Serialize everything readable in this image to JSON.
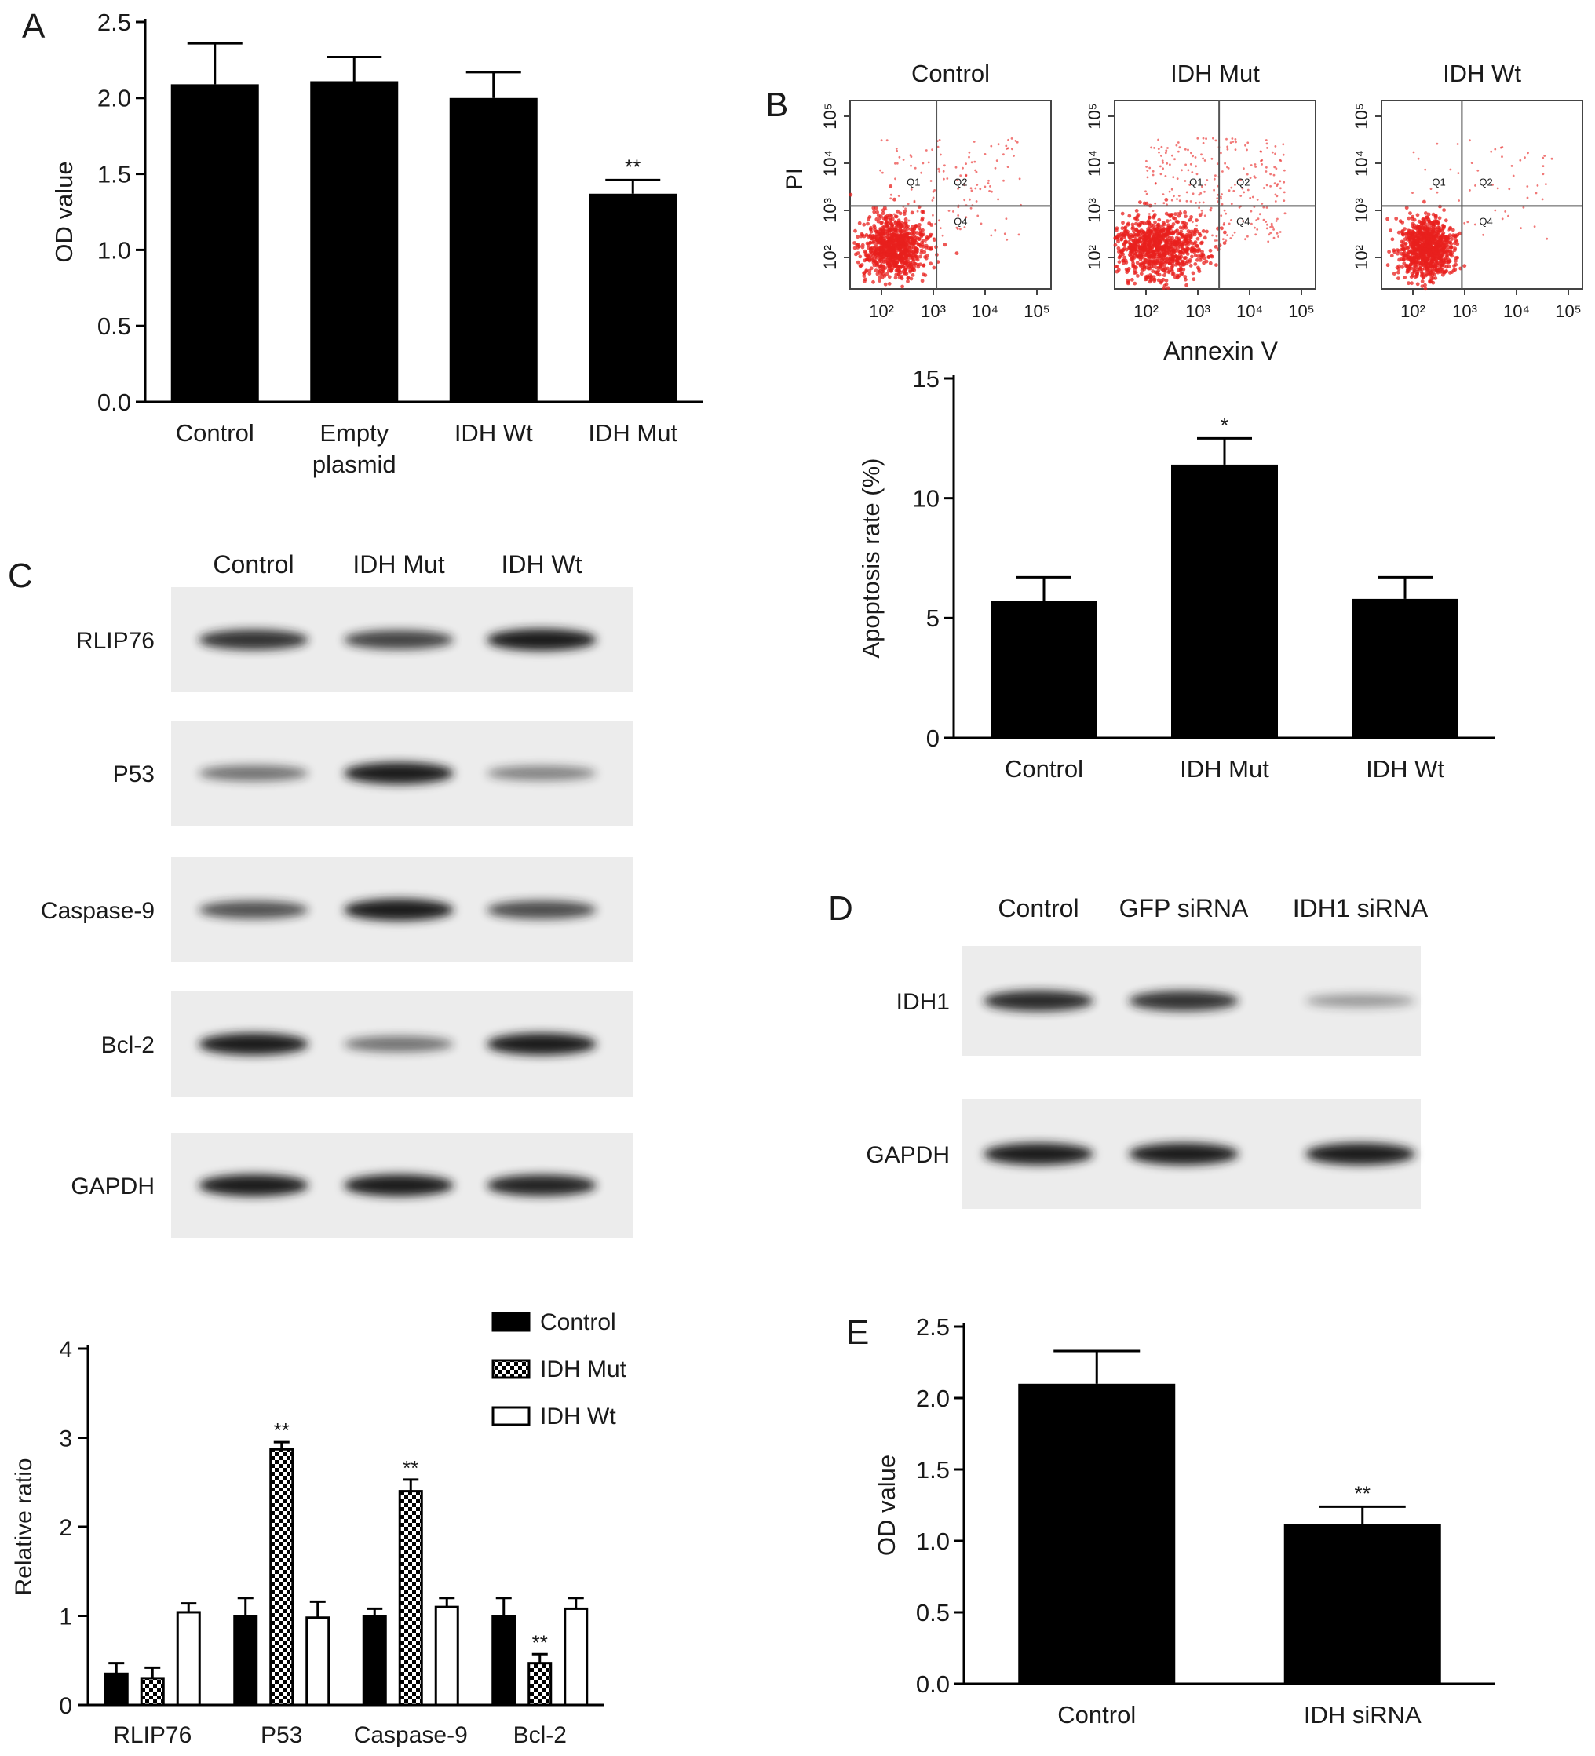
{
  "colors": {
    "bar": "#000000",
    "axis": "#000000",
    "dot": "#e8201e",
    "blot_bg": "#ececec",
    "band": "#1c1c1c"
  },
  "panels": {
    "A": {
      "letter": "A",
      "ylabel": "OD value"
    },
    "B": {
      "letter": "B",
      "flow_titles": [
        "Control",
        "IDH Mut",
        "IDH Wt"
      ],
      "flow_ylabel": "PI",
      "flow_xlabel": "Annexin V",
      "flow_xticks": [
        "10²",
        "10³",
        "10⁴",
        "10⁵"
      ],
      "flow_yticks": [
        "10²",
        "10³",
        "10⁴",
        "10⁵"
      ],
      "quadrants": [
        "Q1",
        "Q2",
        "Q4"
      ],
      "ylabel": "Apoptosis rate (%)"
    },
    "C": {
      "letter": "C",
      "lanes": [
        "Control",
        "IDH Mut",
        "IDH Wt"
      ],
      "rows": [
        "RLIP76",
        "P53",
        "Caspase-9",
        "Bcl-2",
        "GAPDH"
      ],
      "ylabel": "Relative ratio"
    },
    "D": {
      "letter": "D",
      "lanes": [
        "Control",
        "GFP siRNA",
        "IDH1 siRNA"
      ],
      "rows": [
        "IDH1",
        "GAPDH"
      ]
    },
    "E": {
      "letter": "E",
      "ylabel": "OD value"
    }
  },
  "chart_data": [
    {
      "id": "A",
      "type": "bar",
      "categories": [
        "Control",
        "Empty\nplasmid",
        "IDH Wt",
        "IDH Mut"
      ],
      "values": [
        2.09,
        2.11,
        2.0,
        1.37
      ],
      "errors": [
        0.27,
        0.16,
        0.17,
        0.09
      ],
      "significance": [
        "",
        "",
        "",
        "**"
      ],
      "ylim": [
        0,
        2.5
      ],
      "yticks": [
        "0.0",
        "0.5",
        "1.0",
        "1.5",
        "2.0",
        "2.5"
      ],
      "ylabel": "OD value",
      "xlabel": ""
    },
    {
      "id": "B",
      "type": "bar",
      "categories": [
        "Control",
        "IDH Mut",
        "IDH Wt"
      ],
      "values": [
        5.7,
        11.4,
        5.8
      ],
      "errors": [
        1.0,
        1.1,
        0.9
      ],
      "significance": [
        "",
        "*",
        ""
      ],
      "ylim": [
        0,
        15
      ],
      "yticks": [
        "0",
        "5",
        "10",
        "15"
      ],
      "ylabel": "Apoptosis rate (%)",
      "xlabel": ""
    },
    {
      "id": "C",
      "type": "bar",
      "categories": [
        "RLIP76",
        "P53",
        "Caspase-9",
        "Bcl-2"
      ],
      "series": [
        {
          "name": "Control",
          "values": [
            0.35,
            1.0,
            1.0,
            1.0
          ],
          "errors": [
            0.12,
            0.2,
            0.08,
            0.2
          ],
          "significance": [
            "",
            "",
            "",
            ""
          ]
        },
        {
          "name": "IDH Mut",
          "values": [
            0.3,
            2.87,
            2.4,
            0.47
          ],
          "errors": [
            0.12,
            0.08,
            0.13,
            0.1
          ],
          "significance": [
            "",
            "**",
            "**",
            "**"
          ]
        },
        {
          "name": "IDH Wt",
          "values": [
            1.04,
            0.98,
            1.1,
            1.08
          ],
          "errors": [
            0.1,
            0.18,
            0.1,
            0.12
          ],
          "significance": [
            "",
            "",
            "",
            ""
          ]
        }
      ],
      "ylim": [
        0,
        4
      ],
      "yticks": [
        "0",
        "1",
        "2",
        "3",
        "4"
      ],
      "ylabel": "Relative ratio",
      "legend": "top-right"
    },
    {
      "id": "E",
      "type": "bar",
      "categories": [
        "Control",
        "IDH siRNA"
      ],
      "values": [
        2.1,
        1.12
      ],
      "errors": [
        0.23,
        0.12
      ],
      "significance": [
        "",
        "**"
      ],
      "ylim": [
        0,
        2.5
      ],
      "yticks": [
        "0.0",
        "0.5",
        "1.0",
        "1.5",
        "2.0",
        "2.5"
      ],
      "ylabel": "OD value",
      "xlabel": ""
    }
  ],
  "blots": {
    "C": [
      {
        "row": "RLIP76",
        "intensity": [
          0.85,
          0.75,
          1.0
        ]
      },
      {
        "row": "P53",
        "intensity": [
          0.45,
          1.0,
          0.35
        ]
      },
      {
        "row": "Caspase-9",
        "intensity": [
          0.65,
          1.0,
          0.7
        ]
      },
      {
        "row": "Bcl-2",
        "intensity": [
          1.0,
          0.45,
          1.0
        ]
      },
      {
        "row": "GAPDH",
        "intensity": [
          1.0,
          1.0,
          0.95
        ]
      }
    ],
    "D": [
      {
        "row": "IDH1",
        "intensity": [
          0.9,
          0.85,
          0.2
        ]
      },
      {
        "row": "GAPDH",
        "intensity": [
          1.0,
          1.0,
          1.0
        ]
      }
    ]
  }
}
